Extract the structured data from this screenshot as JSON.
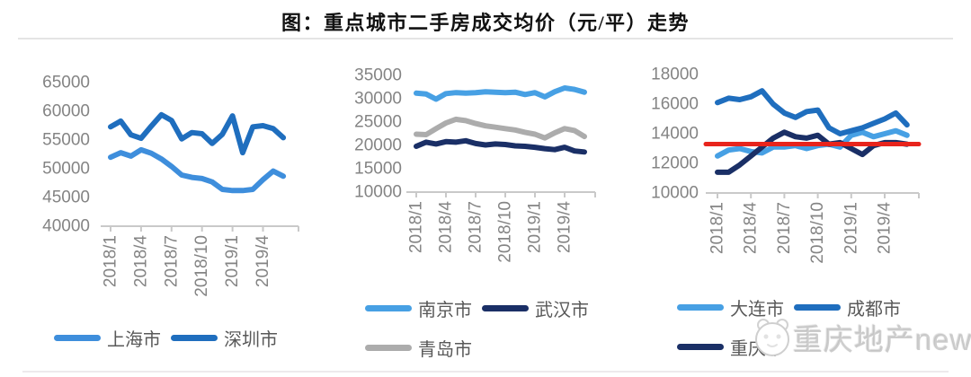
{
  "title": "图：重点城市二手房成交均价（元/平）走势",
  "watermark": {
    "text": "重庆地产news",
    "logo_icon": "panda-logo-icon"
  },
  "colors": {
    "light_blue": "#3E8EDC",
    "bright_blue": "#47A0E4",
    "medium_blue": "#1F6EBE",
    "navy": "#1A2F66",
    "gray": "#ACACAC",
    "red": "#E8241C",
    "axis": "#C9C9C9",
    "tick_text": "#848484",
    "legend_text": "#595959"
  },
  "chart_data": [
    {
      "type": "line",
      "title": "",
      "x": [
        "2018/1",
        "2018/2",
        "2018/3",
        "2018/4",
        "2018/5",
        "2018/6",
        "2018/7",
        "2018/8",
        "2018/9",
        "2018/10",
        "2018/11",
        "2018/12",
        "2019/1",
        "2019/2",
        "2019/3",
        "2019/4",
        "2019/5",
        "2019/6"
      ],
      "x_tick_labels": [
        "2018/1",
        "2018/4",
        "2018/7",
        "2018/10",
        "2019/1",
        "2019/4"
      ],
      "ylim": [
        40000,
        65000
      ],
      "y_tick_labels": [
        "40000",
        "45000",
        "50000",
        "55000",
        "60000",
        "65000"
      ],
      "grid": false,
      "legend_position": "bottom",
      "series": [
        {
          "name": "上海市",
          "color": "#3E8EDC",
          "values": [
            52000,
            52800,
            52200,
            53300,
            52700,
            51700,
            50400,
            48900,
            48500,
            48300,
            47700,
            46400,
            46200,
            46200,
            46400,
            48100,
            49600,
            48700
          ]
        },
        {
          "name": "深圳市",
          "color": "#1F6EBE",
          "values": [
            57300,
            58300,
            55900,
            55300,
            57400,
            59400,
            58400,
            55200,
            56300,
            56100,
            54400,
            56000,
            59200,
            52800,
            57300,
            57500,
            57000,
            55400
          ]
        }
      ]
    },
    {
      "type": "line",
      "title": "",
      "x": [
        "2018/1",
        "2018/2",
        "2018/3",
        "2018/4",
        "2018/5",
        "2018/6",
        "2018/7",
        "2018/8",
        "2018/9",
        "2018/10",
        "2018/11",
        "2018/12",
        "2019/1",
        "2019/2",
        "2019/3",
        "2019/4",
        "2019/5",
        "2019/6"
      ],
      "x_tick_labels": [
        "2018/1",
        "2018/4",
        "2018/7",
        "2018/10",
        "2019/1",
        "2019/4"
      ],
      "ylim": [
        10000,
        35000
      ],
      "y_tick_labels": [
        "10000",
        "15000",
        "20000",
        "25000",
        "30000",
        "35000"
      ],
      "grid": false,
      "legend_position": "bottom",
      "series": [
        {
          "name": "南京市",
          "color": "#47A0E4",
          "values": [
            31200,
            31000,
            29900,
            31100,
            31300,
            31200,
            31300,
            31500,
            31400,
            31300,
            31400,
            30900,
            31300,
            30400,
            31500,
            32300,
            32000,
            31400
          ]
        },
        {
          "name": "武汉市",
          "color": "#1A2F66",
          "values": [
            19800,
            20700,
            20300,
            20800,
            20700,
            21000,
            20400,
            20100,
            20300,
            20200,
            19900,
            19800,
            19600,
            19300,
            19100,
            19600,
            18800,
            18600
          ]
        },
        {
          "name": "青岛市",
          "color": "#ACACAC",
          "values": [
            22400,
            22300,
            23600,
            24800,
            25600,
            25300,
            24700,
            24200,
            23900,
            23600,
            23300,
            22800,
            22400,
            21600,
            22700,
            23600,
            23200,
            21900
          ]
        }
      ]
    },
    {
      "type": "line",
      "title": "",
      "x": [
        "2018/1",
        "2018/2",
        "2018/3",
        "2018/4",
        "2018/5",
        "2018/6",
        "2018/7",
        "2018/8",
        "2018/9",
        "2018/10",
        "2018/11",
        "2018/12",
        "2019/1",
        "2019/2",
        "2019/3",
        "2019/4",
        "2019/5",
        "2019/6"
      ],
      "x_tick_labels": [
        "2018/1",
        "2018/4",
        "2018/7",
        "2018/10",
        "2019/1",
        "2019/4"
      ],
      "ylim": [
        10000,
        18000
      ],
      "y_tick_labels": [
        "10000",
        "12000",
        "14000",
        "16000",
        "18000"
      ],
      "grid": false,
      "legend_position": "bottom",
      "ref_line": {
        "value": 13300,
        "color": "#E8241C"
      },
      "series": [
        {
          "name": "大连市",
          "color": "#47A0E4",
          "values": [
            12500,
            12900,
            13000,
            12800,
            12700,
            13100,
            13100,
            13200,
            13000,
            13200,
            13300,
            13100,
            13900,
            14100,
            13800,
            14000,
            14200,
            13900
          ]
        },
        {
          "name": "成都市",
          "color": "#1F6EBE",
          "values": [
            16100,
            16400,
            16300,
            16500,
            16900,
            16000,
            15400,
            15100,
            15500,
            15600,
            14400,
            14000,
            14200,
            14400,
            14700,
            15000,
            15400,
            14600
          ]
        },
        {
          "name": "重庆市",
          "color": "#1A2F66",
          "values": [
            11400,
            11400,
            11900,
            12500,
            13100,
            13700,
            14100,
            13800,
            13700,
            13900,
            13300,
            13400,
            13000,
            12600,
            13200,
            13400,
            13400,
            13300
          ]
        }
      ]
    }
  ]
}
